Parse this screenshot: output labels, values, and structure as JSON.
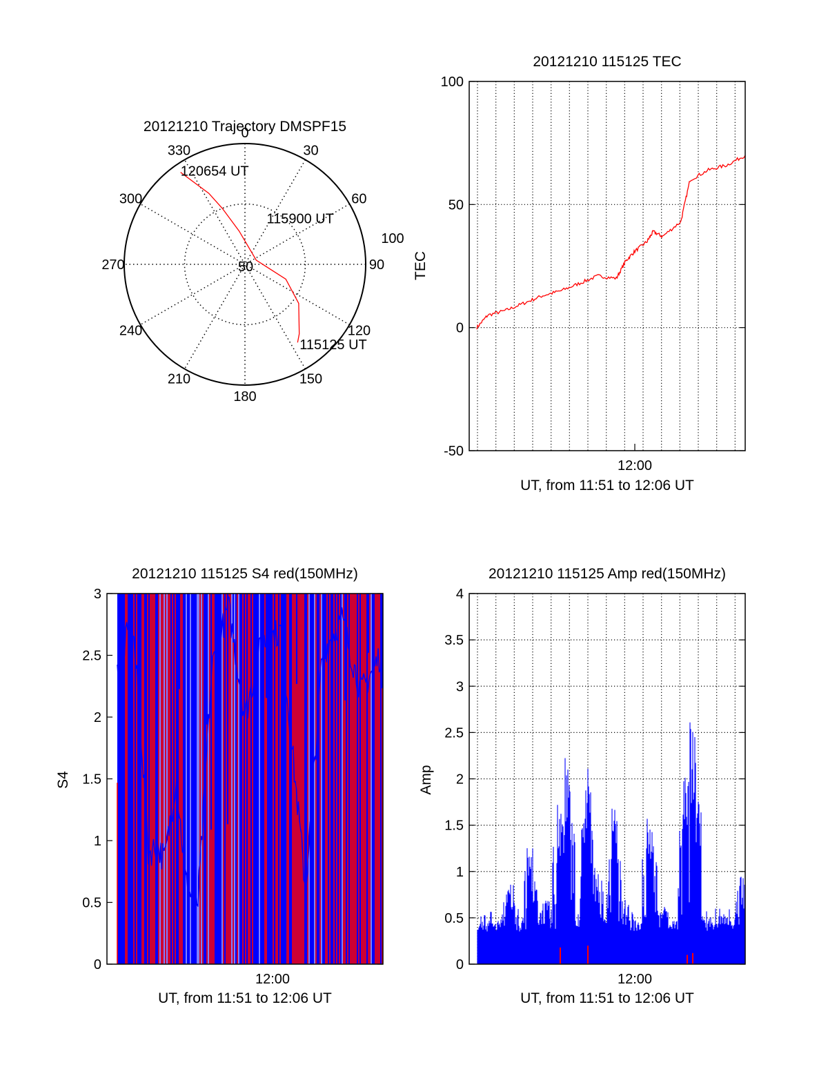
{
  "colors": {
    "red": "#ff0000",
    "blue": "#0000ff",
    "axis": "#000000",
    "grid": "#000000"
  },
  "chart_data": [
    {
      "type": "scatter",
      "polar": true,
      "title": "20121210 Trajectory DMSPF15",
      "angle_ticks": [
        "0",
        "30",
        "60",
        "90",
        "120",
        "150",
        "180",
        "210",
        "240",
        "270",
        "300",
        "330"
      ],
      "radius_ticks": [
        "50",
        "100"
      ],
      "rlim": [
        0,
        100
      ],
      "grid": true,
      "series": [
        {
          "color": "#ff0000",
          "points": [
            [
              325,
              93
            ],
            [
              333,
              66
            ],
            [
              338,
              50
            ],
            [
              350,
              28
            ],
            [
              70,
              10
            ],
            [
              110,
              36
            ],
            [
              126,
              55
            ],
            [
              142,
              73
            ],
            [
              146,
              78
            ]
          ]
        }
      ],
      "annotations": [
        {
          "text": "120654 UT",
          "point": [
            325,
            93
          ]
        },
        {
          "text": "115900 UT",
          "point": [
            350,
            28
          ]
        },
        {
          "text": "115125 UT",
          "point": [
            146,
            78
          ]
        }
      ]
    },
    {
      "type": "line",
      "title": "20121210 115125 TEC",
      "xlabel": "UT, from 11:51 to 12:06 UT",
      "ylabel": "TEC",
      "xlim": [
        "11:51",
        "12:06"
      ],
      "ylim": [
        -50,
        100
      ],
      "x_ticks": [
        "12:00"
      ],
      "y_ticks": [
        "-50",
        "0",
        "50",
        "100"
      ],
      "grid": true,
      "series": [
        {
          "color": "#ff0000",
          "x": [
            "11:51:25",
            "11:52:00",
            "11:53:00",
            "11:54:00",
            "11:55:00",
            "11:56:00",
            "11:57:00",
            "11:58:00",
            "11:59:00",
            "11:59:30",
            "12:00:00",
            "12:00:40",
            "12:01:00",
            "12:01:30",
            "12:02:30",
            "12:03:00",
            "12:04:00",
            "12:05:00",
            "12:06:00"
          ],
          "values": [
            0,
            5,
            7,
            10,
            13,
            15,
            18,
            21,
            20,
            27,
            31,
            35,
            39,
            37,
            43,
            60,
            64,
            66,
            70
          ]
        }
      ]
    },
    {
      "type": "bar",
      "title": "20121210 115125 S4 red(150MHz)",
      "xlabel": "UT, from 11:51 to 12:06 UT",
      "ylabel": "S4",
      "xlim": [
        "11:51",
        "12:06"
      ],
      "ylim": [
        0,
        3
      ],
      "x_ticks": [
        "12:00"
      ],
      "y_ticks": [
        "0",
        "0.5",
        "1",
        "1.5",
        "2",
        "2.5",
        "3"
      ],
      "grid": false,
      "series": [
        {
          "color": "#ff0000",
          "style": "dense vertical bars, values mostly at or above 3 (clipped)"
        },
        {
          "color": "#0000ff",
          "x_fraction_to_value": [
            [
              0.03,
              2.3
            ],
            [
              0.09,
              2.8
            ],
            [
              0.12,
              2.0
            ],
            [
              0.15,
              0.9
            ],
            [
              0.18,
              0.95
            ],
            [
              0.21,
              0.85
            ],
            [
              0.25,
              1.5
            ],
            [
              0.29,
              0.6
            ],
            [
              0.33,
              0.5
            ],
            [
              0.38,
              2.4
            ],
            [
              0.44,
              2.9
            ],
            [
              0.5,
              2.0
            ],
            [
              0.56,
              2.6
            ],
            [
              0.63,
              2.7
            ],
            [
              0.72,
              0.6
            ],
            [
              0.78,
              2.5
            ],
            [
              0.85,
              2.8
            ],
            [
              0.92,
              2.2
            ],
            [
              0.99,
              2.5
            ]
          ]
        }
      ]
    },
    {
      "type": "bar",
      "title": "20121210 115125 Amp red(150MHz)",
      "xlabel": "UT, from 11:51 to 12:06 UT",
      "ylabel": "Amp",
      "xlim": [
        "11:51",
        "12:06"
      ],
      "ylim": [
        0,
        4
      ],
      "x_ticks": [
        "12:00"
      ],
      "y_ticks": [
        "0",
        "0.5",
        "1",
        "1.5",
        "2",
        "2.5",
        "3",
        "3.5",
        "4"
      ],
      "grid": true,
      "series": [
        {
          "color": "#0000ff",
          "x_fraction_to_value": [
            [
              0.03,
              0.45
            ],
            [
              0.1,
              0.5
            ],
            [
              0.15,
              0.9
            ],
            [
              0.22,
              1.3
            ],
            [
              0.27,
              0.7
            ],
            [
              0.33,
              1.8
            ],
            [
              0.355,
              2.25
            ],
            [
              0.38,
              0.5
            ],
            [
              0.43,
              2.3
            ],
            [
              0.46,
              1.1
            ],
            [
              0.5,
              0.5
            ],
            [
              0.525,
              1.7
            ],
            [
              0.57,
              0.7
            ],
            [
              0.62,
              0.5
            ],
            [
              0.655,
              1.8
            ],
            [
              0.69,
              0.6
            ],
            [
              0.74,
              0.5
            ],
            [
              0.785,
              2.15
            ],
            [
              0.81,
              2.7
            ],
            [
              0.85,
              0.6
            ],
            [
              0.92,
              0.55
            ],
            [
              0.99,
              1.0
            ]
          ]
        },
        {
          "color": "#ff0000",
          "x_fraction_to_value": [
            [
              0.33,
              0.18
            ],
            [
              0.43,
              0.2
            ],
            [
              0.79,
              0.1
            ],
            [
              0.81,
              0.12
            ]
          ]
        }
      ]
    }
  ]
}
